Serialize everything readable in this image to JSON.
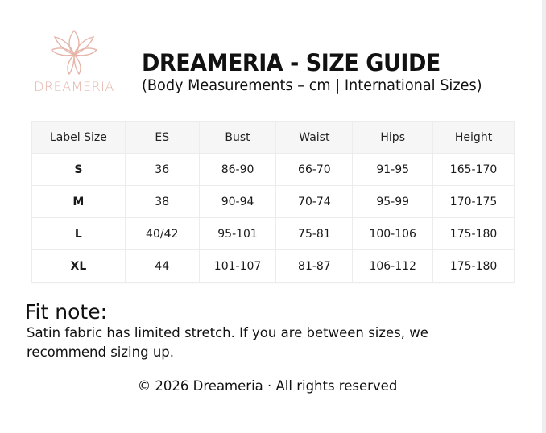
{
  "header": {
    "logo_text": "DREAMERIA",
    "title": "DREAMERIA - SIZE GUIDE",
    "subtitle": "(Body Measurements – cm | International Sizes)"
  },
  "table": {
    "columns": [
      "Label Size",
      "ES",
      "Bust",
      "Waist",
      "Hips",
      "Height"
    ],
    "rows": [
      [
        "S",
        "36",
        "86-90",
        "66-70",
        "91-95",
        "165-170"
      ],
      [
        "M",
        "38",
        "90-94",
        "70-74",
        "95-99",
        "170-175"
      ],
      [
        "L",
        "40/42",
        "95-101",
        "75-81",
        "100-106",
        "175-180"
      ],
      [
        "XL",
        "44",
        "101-107",
        "81-87",
        "106-112",
        "175-180"
      ]
    ]
  },
  "fit_note": {
    "heading": "Fit note:",
    "text": "Satin fabric has limited stretch. If you are between sizes, we recommend sizing up."
  },
  "footer": "© 2026 Dreameria · All rights reserved",
  "colors": {
    "logo": "#e3b3a9",
    "header_bg": "#f6f6f6"
  }
}
